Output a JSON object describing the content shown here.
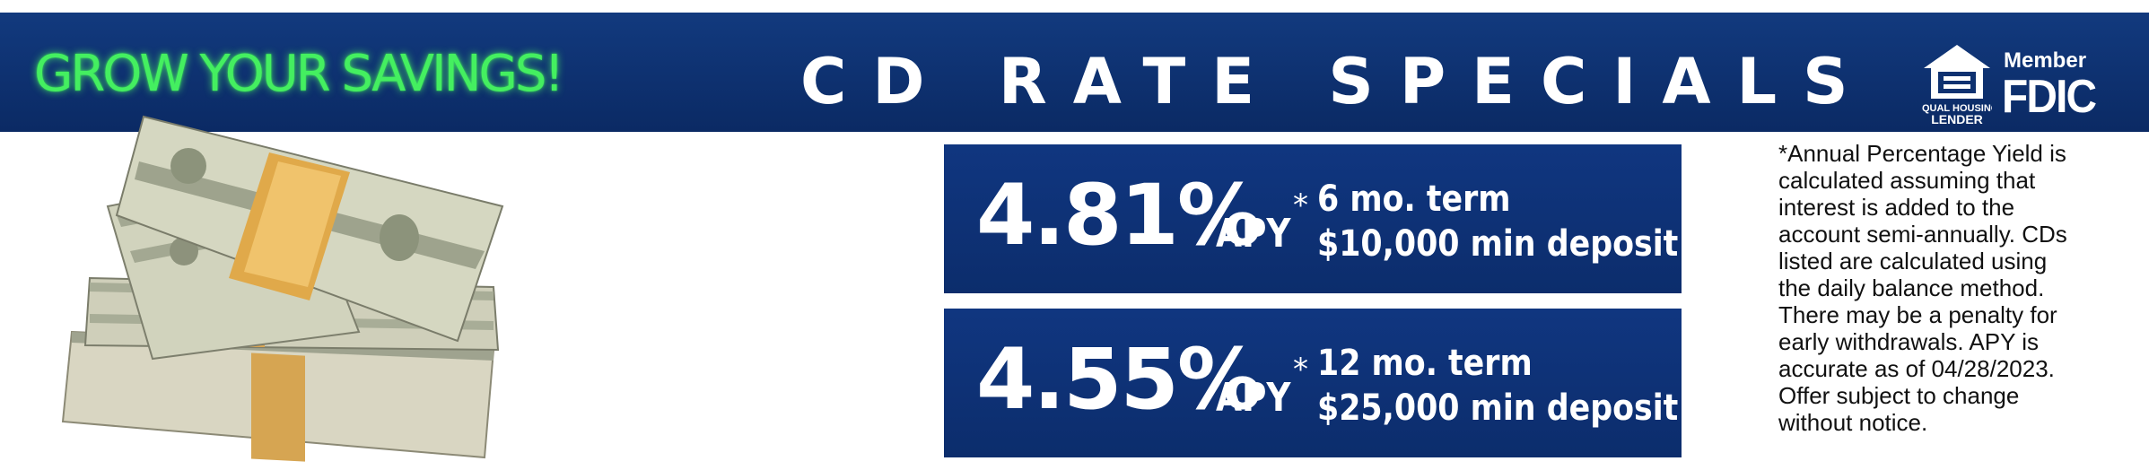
{
  "banner": {
    "tagline": "GROW YOUR SAVINGS!",
    "title": "CD RATE SPECIALS",
    "logos": {
      "equal_housing_line1": "EQUAL HOUSING",
      "equal_housing_line2": "LENDER",
      "member": "Member",
      "fdic": "FDIC"
    }
  },
  "rates": [
    {
      "rate": "4.81%",
      "apy": "APY",
      "star": "*",
      "term": "6 mo. term",
      "deposit": "$10,000 min deposit"
    },
    {
      "rate": "4.55%",
      "apy": "APY",
      "star": "*",
      "term": "12 mo. term",
      "deposit": "$25,000 min deposit"
    }
  ],
  "disclaimer": {
    "lines": [
      "*Annual Percentage Yield is",
      "calculated assuming that",
      "interest is added to the",
      "account semi-annually. CDs",
      "listed are calculated using",
      "the daily balance method.",
      "There may be a penalty for",
      "early withdrawals.  APY is",
      "accurate as of 04/28/2023.",
      "Offer subject to change",
      "without notice."
    ]
  },
  "colors": {
    "banner_blue": "#0e3170",
    "tagline_green": "#44ef60",
    "box_blue": "#103680"
  },
  "icons": [
    "money-stack-image",
    "equal-housing-icon"
  ]
}
